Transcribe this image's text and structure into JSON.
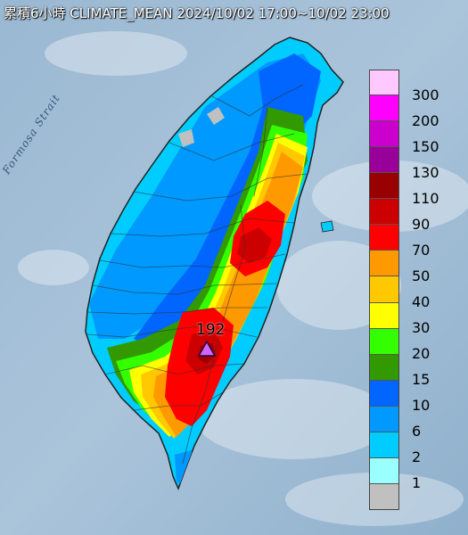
{
  "title": "累積6小時 CLIMATE_MEAN 2024/10/02 17:00~10/02 23:00",
  "sea_label": "Formosa Strait",
  "max_value": "192",
  "legend": [
    {
      "label": "300",
      "color": "#ffc8ff"
    },
    {
      "label": "200",
      "color": "#ff00ff"
    },
    {
      "label": "150",
      "color": "#cc00cc"
    },
    {
      "label": "130",
      "color": "#990099"
    },
    {
      "label": "110",
      "color": "#990000"
    },
    {
      "label": "90",
      "color": "#cc0000"
    },
    {
      "label": "70",
      "color": "#ff0000"
    },
    {
      "label": "50",
      "color": "#ff9900"
    },
    {
      "label": "40",
      "color": "#ffc800"
    },
    {
      "label": "30",
      "color": "#ffff00"
    },
    {
      "label": "20",
      "color": "#33ff00"
    },
    {
      "label": "15",
      "color": "#339900"
    },
    {
      "label": "10",
      "color": "#0066ff"
    },
    {
      "label": "6",
      "color": "#0099ff"
    },
    {
      "label": "2",
      "color": "#00ccff"
    },
    {
      "label": "1",
      "color": "#99ffff"
    },
    {
      "label": "",
      "color": "#c0c0c0"
    }
  ]
}
